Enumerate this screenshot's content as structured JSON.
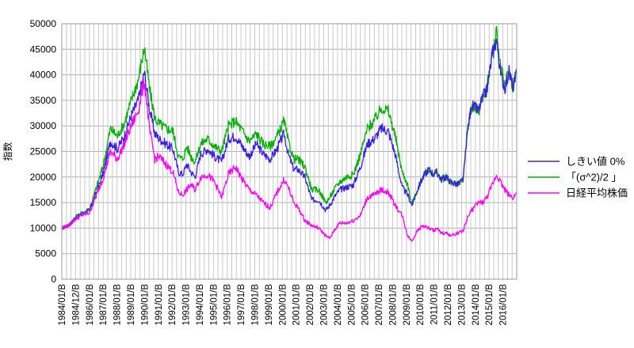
{
  "chart_data": {
    "type": "line",
    "ylabel": "指数",
    "ylim": [
      0,
      50000
    ],
    "yticks": [
      0,
      5000,
      10000,
      15000,
      20000,
      25000,
      30000,
      35000,
      40000,
      45000,
      50000
    ],
    "xlim": [
      1984.0,
      2016.75
    ],
    "xtick_labels": [
      "1984/01/B",
      "1984/12/B",
      "1986/01/B",
      "1987/01/B",
      "1988/01/B",
      "1989/01/B",
      "1990/01/B",
      "1991/01/B",
      "1992/01/B",
      "1993/01/B",
      "1994/01/B",
      "1995/01/B",
      "1996/01/B",
      "1997/01/B",
      "1998/01/B",
      "1999/01/B",
      "2000/01/B",
      "2001/01/B",
      "2002/01/B",
      "2003/01/B",
      "2004/01/B",
      "2005/01/B",
      "2006/01/B",
      "2007/01/B",
      "2008/01/B",
      "2009/01/B",
      "2010/01/B",
      "2011/01/B",
      "2012/01/B",
      "2013/01/B",
      "2014/01/B",
      "2015/01/B",
      "2016/01/B"
    ],
    "grid": true,
    "legend": "right",
    "series": [
      {
        "name": "しきい値 0%",
        "color": "#6a1b9a",
        "x": [
          1984.0,
          1984.5,
          1985.0,
          1985.5,
          1986.0,
          1986.5,
          1987.0,
          1987.5,
          1988.0,
          1988.5,
          1989.0,
          1989.5,
          1989.95,
          1990.3,
          1990.7,
          1991.0,
          1991.5,
          1992.0,
          1992.4,
          1992.7,
          1993.0,
          1993.3,
          1993.6,
          1994.0,
          1994.5,
          1995.0,
          1995.5,
          1996.0,
          1996.5,
          1997.0,
          1997.5,
          1998.0,
          1998.5,
          1999.0,
          1999.5,
          2000.0,
          2000.3,
          2000.7,
          2001.0,
          2001.5,
          2002.0,
          2002.5,
          2003.0,
          2003.3,
          2003.6,
          2004.0,
          2004.5,
          2005.0,
          2005.5,
          2006.0,
          2006.5,
          2007.0,
          2007.5,
          2008.0,
          2008.5,
          2008.9,
          2009.2,
          2009.6,
          2010.0,
          2010.4,
          2010.8,
          2011.0,
          2011.3,
          2011.7,
          2012.0,
          2012.5,
          2012.9,
          2013.2,
          2013.5,
          2014.0,
          2014.3,
          2014.6,
          2015.0,
          2015.3,
          2015.6,
          2015.9,
          2016.2,
          2016.5,
          2016.75
        ],
        "y": [
          10000,
          10500,
          12000,
          12800,
          13500,
          17000,
          21000,
          27000,
          25500,
          28000,
          32000,
          35000,
          40500,
          33500,
          28500,
          27500,
          26500,
          25500,
          21000,
          20500,
          22500,
          21000,
          20000,
          24500,
          25500,
          24000,
          23000,
          27500,
          28000,
          26000,
          24000,
          26500,
          24500,
          23500,
          25500,
          28500,
          24500,
          21500,
          21500,
          20000,
          15500,
          15500,
          13500,
          14500,
          16000,
          17500,
          18000,
          18500,
          22000,
          26500,
          27500,
          29500,
          29000,
          24500,
          18000,
          16500,
          14500,
          17500,
          20000,
          21500,
          20500,
          21000,
          19500,
          20000,
          19000,
          18500,
          19500,
          29000,
          34000,
          33000,
          35500,
          37000,
          44000,
          47000,
          40000,
          37500,
          40500,
          37500,
          40500
        ]
      },
      {
        "name": "「(σ^2)/2 」",
        "color": "#00b000",
        "x": [
          1984.0,
          1984.5,
          1985.0,
          1985.5,
          1986.0,
          1986.5,
          1987.0,
          1987.5,
          1988.0,
          1988.5,
          1989.0,
          1989.5,
          1989.95,
          1990.3,
          1990.7,
          1991.0,
          1991.5,
          1992.0,
          1992.4,
          1992.7,
          1993.0,
          1993.3,
          1993.6,
          1994.0,
          1994.5,
          1995.0,
          1995.5,
          1996.0,
          1996.5,
          1997.0,
          1997.5,
          1998.0,
          1998.5,
          1999.0,
          1999.5,
          2000.0,
          2000.3,
          2000.7,
          2001.0,
          2001.5,
          2002.0,
          2002.5,
          2003.0,
          2003.3,
          2003.6,
          2004.0,
          2004.5,
          2005.0,
          2005.5,
          2006.0,
          2006.5,
          2007.0,
          2007.5,
          2008.0,
          2008.5,
          2008.9,
          2009.2,
          2009.6,
          2010.0,
          2010.4,
          2010.8,
          2011.0,
          2011.3,
          2011.7,
          2012.0,
          2012.5,
          2012.9,
          2013.2,
          2013.5,
          2014.0,
          2014.3,
          2014.6,
          2015.0,
          2015.3,
          2015.6,
          2015.9,
          2016.2,
          2016.5,
          2016.75
        ],
        "y": [
          10000,
          10600,
          12200,
          13000,
          13800,
          18000,
          22500,
          29500,
          28000,
          30500,
          35000,
          39000,
          45500,
          37500,
          31500,
          30500,
          29500,
          29000,
          24000,
          23500,
          26000,
          24000,
          23000,
          26500,
          27500,
          26000,
          25000,
          30000,
          31000,
          29000,
          27000,
          28500,
          26500,
          26000,
          28000,
          31000,
          27000,
          23500,
          23500,
          22000,
          17500,
          17500,
          15000,
          16000,
          17500,
          19000,
          20000,
          20500,
          24500,
          29500,
          31000,
          33500,
          33000,
          28000,
          21000,
          18500,
          14500,
          17500,
          20000,
          21500,
          20500,
          21000,
          19500,
          20000,
          19000,
          18500,
          19500,
          29000,
          34000,
          33000,
          35500,
          37500,
          44500,
          48000,
          41000,
          38000,
          41000,
          37500,
          40500
        ]
      },
      {
        "name": "日経平均株価",
        "color": "#ff00ff",
        "x": [
          1984.0,
          1984.5,
          1985.0,
          1985.5,
          1986.0,
          1986.5,
          1987.0,
          1987.5,
          1988.0,
          1988.5,
          1989.0,
          1989.5,
          1989.95,
          1990.3,
          1990.7,
          1991.0,
          1991.5,
          1992.0,
          1992.4,
          1992.7,
          1993.0,
          1993.3,
          1993.6,
          1994.0,
          1994.5,
          1995.0,
          1995.5,
          1996.0,
          1996.5,
          1997.0,
          1997.5,
          1998.0,
          1998.5,
          1999.0,
          1999.5,
          2000.0,
          2000.3,
          2000.7,
          2001.0,
          2001.5,
          2002.0,
          2002.5,
          2003.0,
          2003.3,
          2003.6,
          2004.0,
          2004.5,
          2005.0,
          2005.5,
          2006.0,
          2006.5,
          2007.0,
          2007.5,
          2008.0,
          2008.5,
          2008.9,
          2009.2,
          2009.6,
          2010.0,
          2010.4,
          2010.8,
          2011.0,
          2011.3,
          2011.7,
          2012.0,
          2012.5,
          2012.9,
          2013.2,
          2013.5,
          2014.0,
          2014.3,
          2014.6,
          2015.0,
          2015.3,
          2015.6,
          2015.9,
          2016.2,
          2016.5,
          2016.75
        ],
        "y": [
          10000,
          10500,
          11800,
          12600,
          13000,
          16500,
          20000,
          25000,
          23500,
          26500,
          30000,
          33000,
          38900,
          29500,
          23500,
          24000,
          22500,
          21000,
          17000,
          16500,
          17500,
          18500,
          17500,
          20000,
          20500,
          19000,
          16000,
          20500,
          22000,
          19500,
          17500,
          16500,
          15000,
          14000,
          17000,
          19500,
          18000,
          15000,
          14000,
          11500,
          10500,
          10000,
          8500,
          8000,
          9500,
          11000,
          11000,
          11500,
          12500,
          16000,
          16500,
          17500,
          17000,
          14500,
          12500,
          8500,
          7500,
          9500,
          10500,
          10000,
          9500,
          10000,
          9000,
          9000,
          8500,
          9000,
          9500,
          12000,
          13500,
          15000,
          15000,
          16000,
          18500,
          20500,
          19000,
          17500,
          16500,
          16000,
          17000
        ]
      }
    ]
  }
}
